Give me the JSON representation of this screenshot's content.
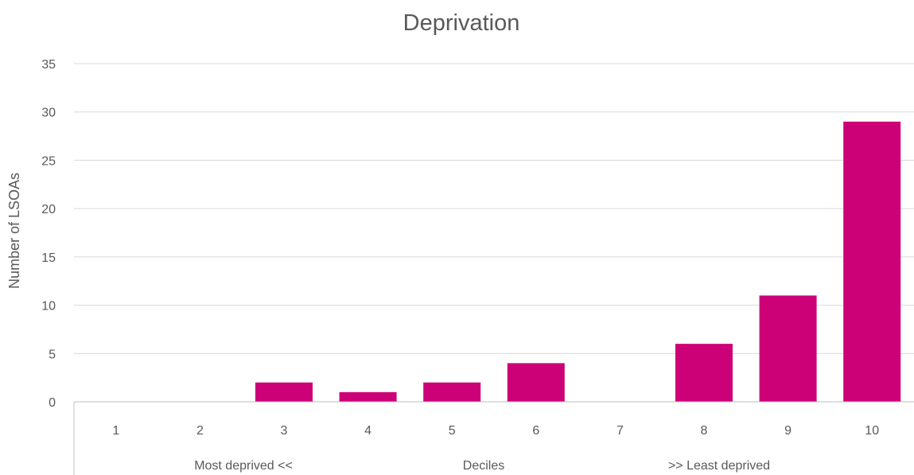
{
  "chart_data": {
    "type": "bar",
    "title": "Deprivation",
    "ylabel": "Number of LSOAs",
    "categories": [
      "1",
      "2",
      "3",
      "4",
      "5",
      "6",
      "7",
      "8",
      "9",
      "10"
    ],
    "values": [
      0,
      0,
      2,
      1,
      2,
      4,
      0,
      6,
      11,
      29
    ],
    "group_labels": [
      "Most deprived <<",
      "Deciles",
      ">> Least deprived"
    ],
    "ylim": [
      0,
      35
    ],
    "yticks": [
      "0",
      "5",
      "10",
      "15",
      "20",
      "25",
      "30",
      "35"
    ],
    "grid": true,
    "legend": "none",
    "bar_color": "#cc0077"
  }
}
